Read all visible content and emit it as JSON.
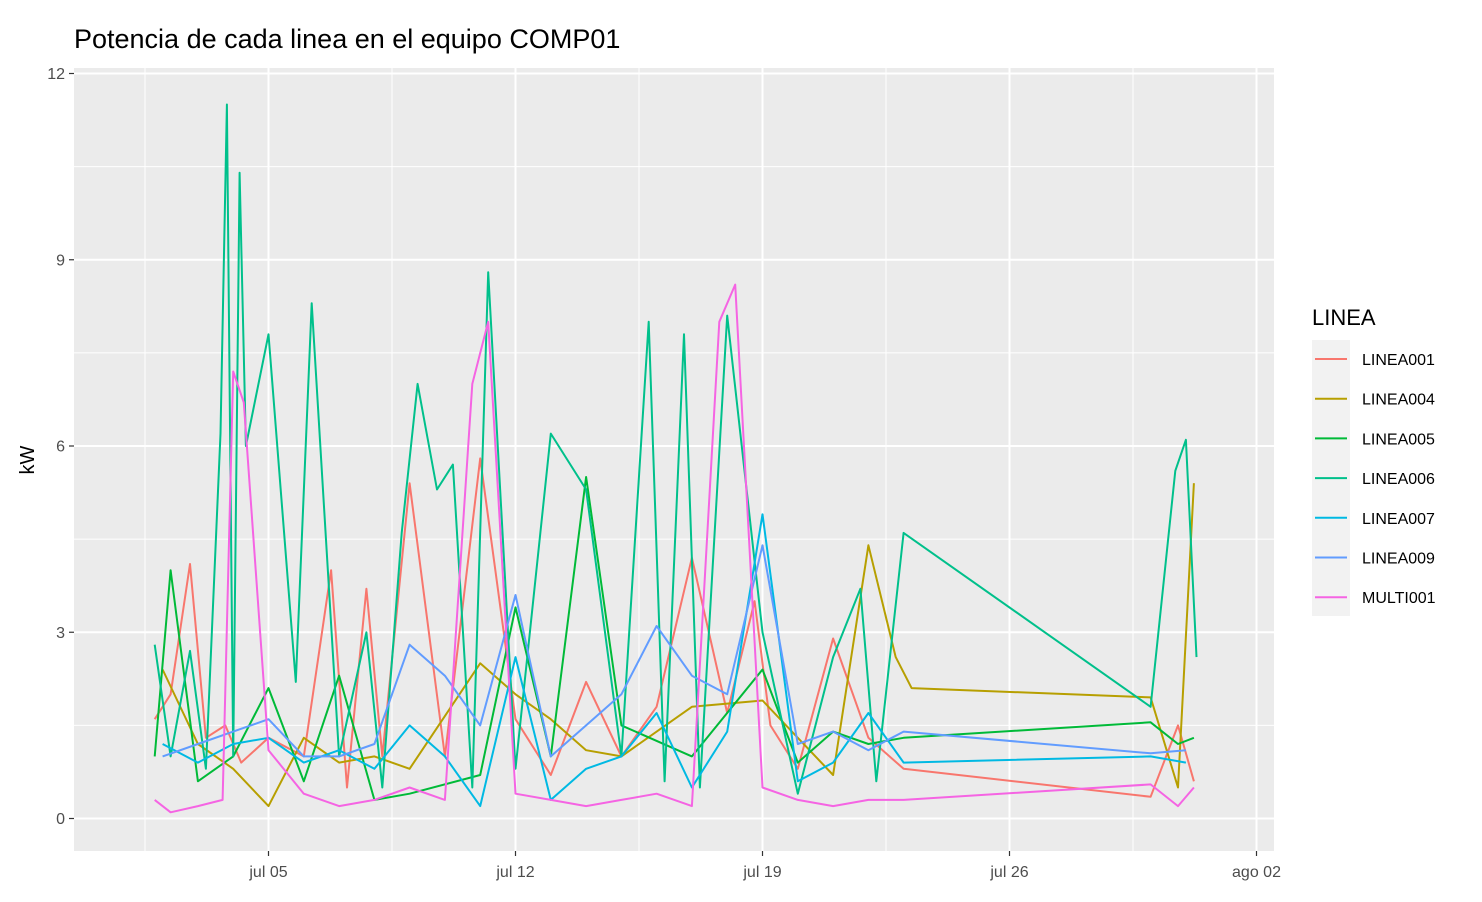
{
  "chart_data": {
    "type": "line",
    "title": "Potencia de cada linea en el equipo COMP01",
    "xlabel": "",
    "ylabel": "kW",
    "y_ticks": [
      "0",
      "3",
      "6",
      "9",
      "12"
    ],
    "x_ticks": [
      "jul 05",
      "jul 12",
      "jul 19",
      "jul 26",
      "ago 02"
    ],
    "grid": true,
    "legend": {
      "title": "LINEA",
      "position": "right"
    },
    "series": [
      {
        "name": "LINEA001",
        "color": "#F8766D",
        "x": [
          "2024-07-02",
          "2024-07-02",
          "2024-07-03",
          "2024-07-03",
          "2024-07-04",
          "2024-07-04",
          "2024-07-05",
          "2024-07-06",
          "2024-07-07",
          "2024-07-07",
          "2024-07-08",
          "2024-07-08",
          "2024-07-09",
          "2024-07-10",
          "2024-07-11",
          "2024-07-12",
          "2024-07-13",
          "2024-07-14",
          "2024-07-15",
          "2024-07-16",
          "2024-07-17",
          "2024-07-18",
          "2024-07-19",
          "2024-07-19",
          "2024-07-20",
          "2024-07-21",
          "2024-07-22",
          "2024-07-23",
          "2024-07-30",
          "2024-07-31",
          "2024-07-31"
        ],
        "values": [
          1.6,
          2.0,
          4.1,
          1.3,
          1.5,
          0.9,
          1.3,
          1.0,
          4.0,
          0.5,
          3.7,
          1.0,
          5.4,
          1.0,
          5.8,
          1.6,
          0.7,
          2.2,
          1.0,
          1.8,
          4.2,
          1.7,
          3.5,
          1.5,
          0.8,
          2.9,
          1.3,
          0.8,
          0.35,
          1.5,
          0.6
        ]
      },
      {
        "name": "LINEA004",
        "color": "#B79F00",
        "x": [
          "2024-07-02",
          "2024-07-03",
          "2024-07-04",
          "2024-07-05",
          "2024-07-06",
          "2024-07-07",
          "2024-07-08",
          "2024-07-09",
          "2024-07-11",
          "2024-07-12",
          "2024-07-13",
          "2024-07-14",
          "2024-07-15",
          "2024-07-17",
          "2024-07-19",
          "2024-07-20",
          "2024-07-21",
          "2024-07-22",
          "2024-07-23",
          "2024-07-23",
          "2024-07-30",
          "2024-07-31",
          "2024-07-31"
        ],
        "values": [
          2.4,
          1.2,
          0.8,
          0.2,
          1.3,
          0.9,
          1.0,
          0.8,
          2.5,
          2.0,
          1.6,
          1.1,
          1.0,
          1.8,
          1.9,
          1.3,
          0.7,
          4.4,
          2.6,
          2.1,
          1.95,
          0.5,
          5.4
        ]
      },
      {
        "name": "LINEA005",
        "color": "#00BA38",
        "x": [
          "2024-07-02",
          "2024-07-02",
          "2024-07-03",
          "2024-07-04",
          "2024-07-05",
          "2024-07-06",
          "2024-07-07",
          "2024-07-08",
          "2024-07-09",
          "2024-07-11",
          "2024-07-12",
          "2024-07-13",
          "2024-07-14",
          "2024-07-15",
          "2024-07-17",
          "2024-07-19",
          "2024-07-20",
          "2024-07-21",
          "2024-07-22",
          "2024-07-23",
          "2024-07-30",
          "2024-07-31",
          "2024-07-31"
        ],
        "values": [
          1.0,
          4.0,
          0.6,
          1.0,
          2.1,
          0.6,
          2.3,
          0.3,
          0.4,
          0.7,
          3.4,
          1.0,
          5.5,
          1.5,
          1.0,
          2.4,
          0.9,
          1.4,
          1.2,
          1.3,
          1.55,
          1.2,
          1.3
        ]
      },
      {
        "name": "LINEA006",
        "color": "#00C08B",
        "x": [
          "2024-07-02",
          "2024-07-02",
          "2024-07-03",
          "2024-07-03",
          "2024-07-04",
          "2024-07-04",
          "2024-07-04",
          "2024-07-04",
          "2024-07-04",
          "2024-07-05",
          "2024-07-06",
          "2024-07-06",
          "2024-07-07",
          "2024-07-08",
          "2024-07-08",
          "2024-07-09",
          "2024-07-09",
          "2024-07-10",
          "2024-07-10",
          "2024-07-11",
          "2024-07-11",
          "2024-07-12",
          "2024-07-13",
          "2024-07-14",
          "2024-07-15",
          "2024-07-16",
          "2024-07-16",
          "2024-07-17",
          "2024-07-17",
          "2024-07-18",
          "2024-07-19",
          "2024-07-20",
          "2024-07-21",
          "2024-07-22",
          "2024-07-22",
          "2024-07-23",
          "2024-07-30",
          "2024-07-31",
          "2024-07-31",
          "2024-07-31"
        ],
        "values": [
          2.8,
          1.0,
          2.7,
          0.8,
          6.2,
          11.5,
          1.0,
          10.4,
          6.0,
          7.8,
          2.2,
          8.3,
          1.0,
          3.0,
          0.5,
          4.6,
          7.0,
          5.3,
          5.7,
          0.5,
          8.8,
          0.8,
          6.2,
          5.3,
          1.0,
          8.0,
          0.6,
          7.8,
          0.5,
          8.1,
          3.0,
          0.4,
          2.6,
          3.7,
          0.6,
          4.6,
          1.8,
          5.6,
          6.1,
          2.6
        ]
      },
      {
        "name": "LINEA007",
        "color": "#00B9E3",
        "x": [
          "2024-07-02",
          "2024-07-03",
          "2024-07-04",
          "2024-07-05",
          "2024-07-06",
          "2024-07-07",
          "2024-07-08",
          "2024-07-09",
          "2024-07-10",
          "2024-07-11",
          "2024-07-12",
          "2024-07-13",
          "2024-07-14",
          "2024-07-15",
          "2024-07-16",
          "2024-07-17",
          "2024-07-18",
          "2024-07-19",
          "2024-07-20",
          "2024-07-21",
          "2024-07-22",
          "2024-07-23",
          "2024-07-30",
          "2024-07-31"
        ],
        "values": [
          1.2,
          0.9,
          1.2,
          1.3,
          0.9,
          1.1,
          0.8,
          1.5,
          1.0,
          0.2,
          2.6,
          0.3,
          0.8,
          1.0,
          1.7,
          0.5,
          1.4,
          4.9,
          0.6,
          0.9,
          1.7,
          0.9,
          1.0,
          0.9
        ]
      },
      {
        "name": "LINEA009",
        "color": "#619CFF",
        "x": [
          "2024-07-02",
          "2024-07-03",
          "2024-07-04",
          "2024-07-05",
          "2024-07-06",
          "2024-07-07",
          "2024-07-08",
          "2024-07-09",
          "2024-07-10",
          "2024-07-11",
          "2024-07-12",
          "2024-07-13",
          "2024-07-14",
          "2024-07-15",
          "2024-07-16",
          "2024-07-17",
          "2024-07-18",
          "2024-07-19",
          "2024-07-20",
          "2024-07-21",
          "2024-07-22",
          "2024-07-23",
          "2024-07-30",
          "2024-07-31"
        ],
        "values": [
          1.0,
          1.2,
          1.4,
          1.6,
          1.0,
          1.0,
          1.2,
          2.8,
          2.3,
          1.5,
          3.6,
          1.0,
          1.5,
          2.0,
          3.1,
          2.3,
          2.0,
          4.4,
          1.2,
          1.4,
          1.1,
          1.4,
          1.05,
          1.1
        ]
      },
      {
        "name": "MULTI001",
        "color": "#F564E3",
        "x": [
          "2024-07-02",
          "2024-07-02",
          "2024-07-03",
          "2024-07-04",
          "2024-07-04",
          "2024-07-04",
          "2024-07-05",
          "2024-07-06",
          "2024-07-07",
          "2024-07-08",
          "2024-07-09",
          "2024-07-10",
          "2024-07-11",
          "2024-07-11",
          "2024-07-12",
          "2024-07-13",
          "2024-07-14",
          "2024-07-15",
          "2024-07-16",
          "2024-07-17",
          "2024-07-18",
          "2024-07-18",
          "2024-07-19",
          "2024-07-20",
          "2024-07-21",
          "2024-07-22",
          "2024-07-23",
          "2024-07-30",
          "2024-07-31",
          "2024-07-31"
        ],
        "values": [
          0.3,
          0.1,
          0.2,
          0.3,
          7.2,
          6.7,
          1.1,
          0.4,
          0.2,
          0.3,
          0.5,
          0.3,
          7.0,
          8.0,
          0.4,
          0.3,
          0.2,
          0.3,
          0.4,
          0.2,
          8.0,
          8.6,
          0.5,
          0.3,
          0.2,
          0.3,
          0.3,
          0.55,
          0.2,
          0.5
        ]
      }
    ]
  }
}
